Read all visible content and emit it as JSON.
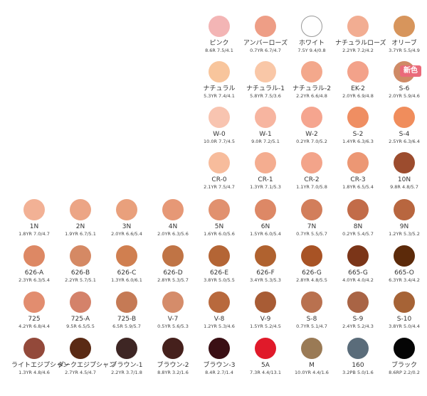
{
  "swatches": [
    {
      "name": "ピンク",
      "code": "8.6R 7.5/4.1",
      "color": "#f3b5b5",
      "row": 0,
      "col": 4
    },
    {
      "name": "アンバーローズ",
      "code": "0.7YR 6.7/4.7",
      "color": "#ee9e86",
      "row": 0,
      "col": 5
    },
    {
      "name": "ホワイト",
      "code": "7.5Y 9.4/0.8",
      "color": "#ffffff",
      "row": 0,
      "col": 6,
      "outlined": true
    },
    {
      "name": "ナチュラルローズ",
      "code": "2.2YR 7.2/4.2",
      "color": "#f2ad92",
      "row": 0,
      "col": 7
    },
    {
      "name": "オリーブ",
      "code": "3.7YR 5.5/4.9",
      "color": "#d7955c",
      "row": 0,
      "col": 8
    },
    {
      "name": "ナチュラル",
      "code": "5.3YR 7.4/4.1",
      "color": "#f8c59c",
      "row": 1,
      "col": 4
    },
    {
      "name": "ナチュラル-1",
      "code": "5.8YR 7.5/3.6",
      "color": "#f9c7a7",
      "row": 1,
      "col": 5
    },
    {
      "name": "ナチュラル-2",
      "code": "2.2YR 6.6/4.8",
      "color": "#f3a88c",
      "row": 1,
      "col": 6
    },
    {
      "name": "EK-2",
      "code": "2.0YR 6.9/4.8",
      "color": "#f3a28a",
      "row": 1,
      "col": 7
    },
    {
      "name": "S-6",
      "code": "2.0YR 5.9/4.6",
      "color": "#cf8a66",
      "row": 1,
      "col": 8
    },
    {
      "name": "W-0",
      "code": "10.0R 7.7/4.5",
      "color": "#f8c4b0",
      "row": 2,
      "col": 4
    },
    {
      "name": "W-1",
      "code": "9.0R 7.2/5.1",
      "color": "#f7b5a0",
      "row": 2,
      "col": 5
    },
    {
      "name": "W-2",
      "code": "0.2YR 7.0/5.2",
      "color": "#f5a58f",
      "row": 2,
      "col": 6
    },
    {
      "name": "S-2",
      "code": "1.4YR 6.3/6.3",
      "color": "#ef8e62",
      "row": 2,
      "col": 7
    },
    {
      "name": "S-4",
      "code": "2.5YR 6.3/6.4",
      "color": "#f08d5c",
      "row": 2,
      "col": 8
    },
    {
      "name": "CR-0",
      "code": "2.1YR 7.5/4.7",
      "color": "#f7bc9c",
      "row": 3,
      "col": 4
    },
    {
      "name": "CR-1",
      "code": "1.3YR 7.1/5.3",
      "color": "#f4ad90",
      "row": 3,
      "col": 5
    },
    {
      "name": "CR-2",
      "code": "1.1YR 7.0/5.8",
      "color": "#f3a48a",
      "row": 3,
      "col": 6
    },
    {
      "name": "CR-3",
      "code": "1.8YR 6.5/5.4",
      "color": "#ec9774",
      "row": 3,
      "col": 7
    },
    {
      "name": "10N",
      "code": "9.8R 4.8/5.7",
      "color": "#9c4c2e",
      "row": 3,
      "col": 8
    },
    {
      "name": "1N",
      "code": "1.8YR 7.0/4.7",
      "color": "#f2b195",
      "row": 4,
      "col": 0
    },
    {
      "name": "2N",
      "code": "1.9YR 6.7/5.1",
      "color": "#eca585",
      "row": 4,
      "col": 1
    },
    {
      "name": "3N",
      "code": "2.0YR 6.6/5.4",
      "color": "#e9a07c",
      "row": 4,
      "col": 2
    },
    {
      "name": "4N",
      "code": "2.0YR 6.3/5.6",
      "color": "#e69876",
      "row": 4,
      "col": 3
    },
    {
      "name": "5N",
      "code": "1.6YR 6.0/5.6",
      "color": "#e1916f",
      "row": 4,
      "col": 4
    },
    {
      "name": "6N",
      "code": "1.5YR 6.0/5.4",
      "color": "#dd8866",
      "row": 4,
      "col": 5
    },
    {
      "name": "7N",
      "code": "0.7YR 5.5/5.7",
      "color": "#d27e5b",
      "row": 4,
      "col": 6
    },
    {
      "name": "8N",
      "code": "0.2YR 5.4/5.7",
      "color": "#c26c49",
      "row": 4,
      "col": 7
    },
    {
      "name": "9N",
      "code": "1.2YR 5.3/5.2",
      "color": "#b8663f",
      "row": 4,
      "col": 8
    },
    {
      "name": "626-A",
      "code": "2.3YR 6.3/5.4",
      "color": "#dd8864",
      "row": 5,
      "col": 0
    },
    {
      "name": "626-B",
      "code": "2.2YR 5.7/5.1",
      "color": "#d58964",
      "row": 5,
      "col": 1
    },
    {
      "name": "626-C",
      "code": "1.3YR 6.0/6.1",
      "color": "#d07f50",
      "row": 5,
      "col": 2
    },
    {
      "name": "626-D",
      "code": "2.8YR 5.3/5.7",
      "color": "#c07445",
      "row": 5,
      "col": 3
    },
    {
      "name": "626-E",
      "code": "3.8YR 5.0/5.5",
      "color": "#b46535",
      "row": 5,
      "col": 4
    },
    {
      "name": "626-F",
      "code": "3.4YR 5.3/5.3",
      "color": "#b0622f",
      "row": 5,
      "col": 5
    },
    {
      "name": "626-G",
      "code": "2.8YR 4.8/5.5",
      "color": "#a85325",
      "row": 5,
      "col": 6
    },
    {
      "name": "665-G",
      "code": "4.0YR 4.0/4.2",
      "color": "#7b3518",
      "row": 5,
      "col": 7
    },
    {
      "name": "665-O",
      "code": "6.3YR 3.4/4.2",
      "color": "#5c2a0a",
      "row": 5,
      "col": 8
    },
    {
      "name": "725",
      "code": "4.2YR 6.8/4.4",
      "color": "#e28d6f",
      "row": 6,
      "col": 0
    },
    {
      "name": "725-A",
      "code": "9.5R 6.5/5.5",
      "color": "#d4826a",
      "row": 6,
      "col": 1
    },
    {
      "name": "725-B",
      "code": "6.5R 5.9/5.7",
      "color": "#c57a55",
      "row": 6,
      "col": 2
    },
    {
      "name": "V-7",
      "code": "0.5YR 5.6/5.3",
      "color": "#d58c6a",
      "row": 6,
      "col": 3
    },
    {
      "name": "V-8",
      "code": "1.2YR 5.3/4.6",
      "color": "#b8693d",
      "row": 6,
      "col": 4
    },
    {
      "name": "V-9",
      "code": "1.5YR 5.2/4.5",
      "color": "#a85c35",
      "row": 6,
      "col": 5
    },
    {
      "name": "S-8",
      "code": "0.7YR 5.1/4.7",
      "color": "#b9714f",
      "row": 6,
      "col": 6
    },
    {
      "name": "S-9",
      "code": "2.4YR 5.2/4.3",
      "color": "#a96445",
      "row": 6,
      "col": 7
    },
    {
      "name": "S-10",
      "code": "3.8YR 5.0/4.4",
      "color": "#a66336",
      "row": 6,
      "col": 8
    },
    {
      "name": "ライトエジプシャン",
      "code": "1.3YR 4.8/4.6",
      "color": "#93493a",
      "row": 7,
      "col": 0
    },
    {
      "name": "ダークエジプシャン",
      "code": "2.7YR 4.5/4.7",
      "color": "#5a2a14",
      "row": 7,
      "col": 1
    },
    {
      "name": "ブラウン-1",
      "code": "2.2YR 3.7/1.8",
      "color": "#3e2624",
      "row": 7,
      "col": 2
    },
    {
      "name": "ブラウン-2",
      "code": "8.8YR 3.2/1.6",
      "color": "#45201c",
      "row": 7,
      "col": 3
    },
    {
      "name": "ブラウン-3",
      "code": "8.4R 2.7/1.4",
      "color": "#3a0f14",
      "row": 7,
      "col": 4
    },
    {
      "name": "5A",
      "code": "7.3R 4.4/13.1",
      "color": "#e01a2a",
      "row": 7,
      "col": 5
    },
    {
      "name": "M",
      "code": "10.0YR 4.4/1.6",
      "color": "#9a7a55",
      "row": 7,
      "col": 6
    },
    {
      "name": "160",
      "code": "3.2PB 5.0/1.6",
      "color": "#5a6c7a",
      "row": 7,
      "col": 7
    },
    {
      "name": "ブラック",
      "code": "8.6RP 2.2/0.2",
      "color": "#050505",
      "row": 7,
      "col": 8
    }
  ],
  "new_badge": {
    "label": "新色",
    "color": "#ea6a7a"
  }
}
